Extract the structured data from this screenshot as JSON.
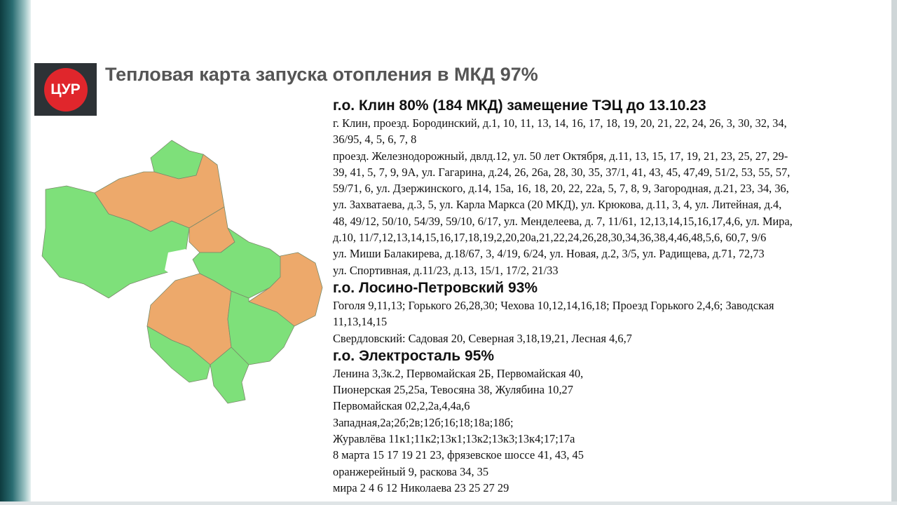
{
  "header": {
    "logo": "ЦУР",
    "title": "Тепловая карта запуска отопления в МКД 97%"
  },
  "sections": [
    {
      "heading": "г.о. Клин 80% (184 МКД) замещение ТЭЦ до 13.10.23",
      "lines": [
        "г. Клин, проезд. Бородинский, д.1, 10, 11, 13, 14, 16, 17, 18, 19, 20, 21, 22, 24, 26, 3, 30, 32, 34,",
        "36/95, 4, 5, 6, 7, 8",
        "проезд. Железнодорожный, двлд.12, ул. 50 лет Октября, д.11, 13, 15, 17, 19, 21, 23, 25, 27, 29-",
        "39, 41, 5, 7, 9, 9А, ул. Гагарина, д.24, 26, 26а, 28, 30, 35, 37/1, 41, 43, 45, 47,49, 51/2, 53, 55, 57,",
        "59/71, 6, ул. Дзержинского, д.14, 15а, 16, 18, 20, 22, 22а, 5, 7, 8, 9, Загородная, д.21, 23, 34, 36,",
        "ул. Захватаева, д.3, 5, ул. Карла Маркса (20 МКД), ул. Крюкова, д.11, 3, 4, ул. Литейная, д.4,",
        "48, 49/12,  50/10, 54/39, 59/10, 6/17, ул. Менделеева, д. 7, 11/61, 12,13,14,15,16,17,4,6, ул. Мира,",
        "д.10, 11/7,12,13,14,15,16,17,18,19,2,20,20а,21,22,24,26,28,30,34,36,38,4,46,48,5,6, 60,7, 9/6",
        "ул. Миши Балакирева, д.18/67, 3, 4/19, 6/24, ул. Новая, д.2, 3/5, ул. Радищева, д.71, 72,73",
        "ул. Спортивная, д.11/23, д.13, 15/1, 17/2, 21/33"
      ]
    },
    {
      "heading": "г.о. Лосино-Петровский 93%",
      "lines": [
        "Гоголя 9,11,13; Горького 26,28,30; Чехова 10,12,14,16,18; Проезд Горького 2,4,6; Заводская",
        "11,13,14,15",
        "Свердловский: Садовая 20, Северная 3,18,19,21, Лесная 4,6,7"
      ]
    },
    {
      "heading": "г.о. Электросталь 95%",
      "lines": [
        "Ленина 3,3к.2, Первомайская 2Б, Первомайская 40,",
        "Пионерская 25,25а, Тевосяна 38, Жулябина 10,27",
        "Первомайская 02,2,2а,4,4а,6",
        "Западная,2а;2б;2в;12б;16;18;18а;18б;",
        "Журавлёва 11к1;11к2;13к1;13к2;13к3;13к4;17;17а",
        "8 марта 15 17 19 21 23, фрязевское шоссе 41, 43, 45",
        "оранжерейный 9, раскова 34, 35",
        "мира 2 4 6 12 Николаева 23 25 27 29"
      ]
    }
  ]
}
